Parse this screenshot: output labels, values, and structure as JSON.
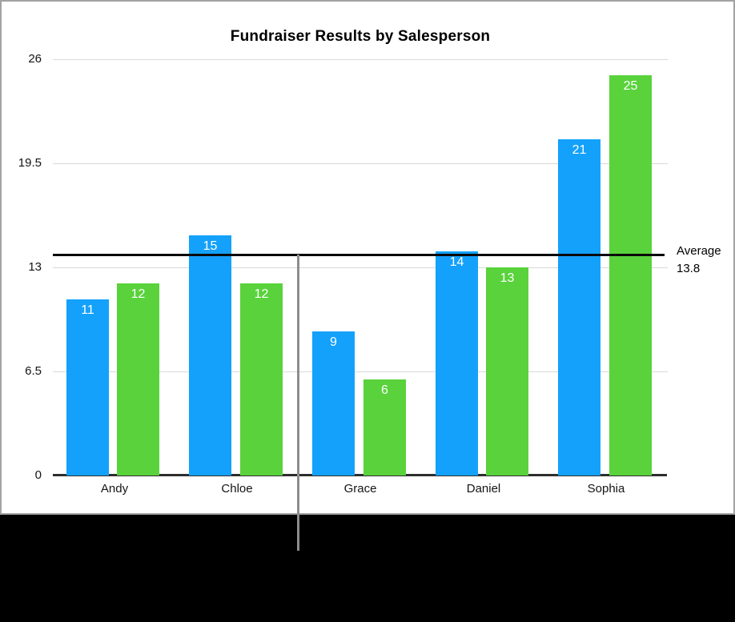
{
  "chart": {
    "average_label": {
      "line1": "Average",
      "line2": "13.8"
    }
  },
  "chart_data": {
    "type": "bar",
    "title": "Fundraiser Results by Salesperson",
    "categories": [
      "Andy",
      "Chloe",
      "Grace",
      "Daniel",
      "Sophia"
    ],
    "series": [
      {
        "name": "blue-series",
        "color": "#14a1fb",
        "values": [
          11,
          15,
          9,
          14,
          21
        ]
      },
      {
        "name": "green-series",
        "color": "#59d23b",
        "values": [
          12,
          12,
          6,
          13,
          25
        ]
      }
    ],
    "yticks": [
      0,
      6.5,
      13,
      19.5,
      26
    ],
    "ylim": [
      0,
      26
    ],
    "grid": true,
    "legend": false,
    "value_labels": "inside-top",
    "annotations": [
      {
        "type": "reference-line",
        "value": 13.8,
        "label": "Average 13.8"
      }
    ]
  }
}
